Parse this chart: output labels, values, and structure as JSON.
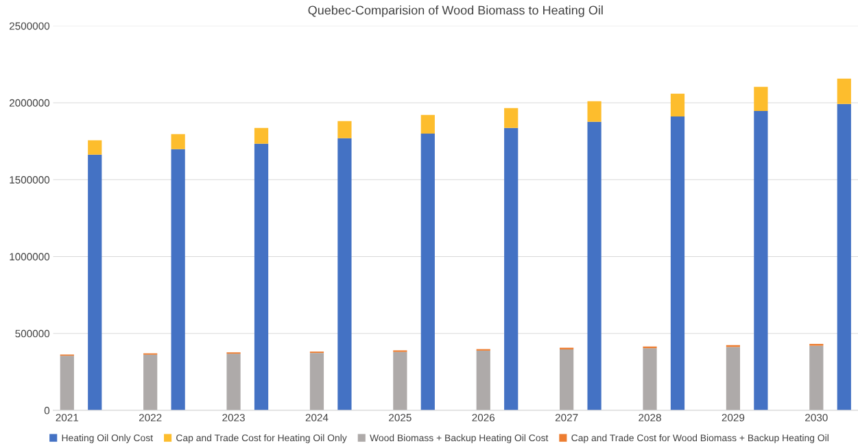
{
  "chart_data": {
    "type": "bar",
    "stacked": true,
    "title": "Quebec-Comparision of Wood Biomass to Heating Oil",
    "categories": [
      "2021",
      null,
      null,
      "2022",
      null,
      null,
      "2023",
      null,
      null,
      "2024",
      null,
      null,
      "2025",
      null,
      null,
      "2026",
      null,
      null,
      "2027",
      null,
      null,
      "2028",
      null,
      null,
      "2029",
      null,
      null,
      "2030",
      null
    ],
    "series": [
      {
        "name": "Heating Oil Only Cost",
        "color": "#4472c4",
        "values": [
          null,
          1662000,
          null,
          null,
          1698000,
          null,
          null,
          1734000,
          null,
          null,
          1769000,
          null,
          null,
          1800000,
          null,
          null,
          1836000,
          null,
          null,
          1876000,
          null,
          null,
          1911000,
          null,
          null,
          1947000,
          null,
          null,
          1992000
        ]
      },
      {
        "name": "Cap and Trade Cost for Heating Oil Only",
        "color": "#fdbd2d",
        "values": [
          null,
          94000,
          null,
          null,
          98000,
          null,
          null,
          102000,
          null,
          null,
          112000,
          null,
          null,
          121000,
          null,
          null,
          129000,
          null,
          null,
          134000,
          null,
          null,
          148000,
          null,
          null,
          156000,
          null,
          null,
          165000
        ]
      },
      {
        "name": "Wood Biomass + Backup Heating Oil Cost",
        "color": "#aeaaa9",
        "values": [
          355000,
          null,
          null,
          362000,
          null,
          null,
          368000,
          null,
          null,
          373000,
          null,
          null,
          380000,
          null,
          null,
          388000,
          null,
          null,
          396000,
          null,
          null,
          404000,
          null,
          null,
          412000,
          null,
          null,
          420000,
          null
        ]
      },
      {
        "name": "Cap and Trade Cost for Wood Biomass + Backup Heating Oil",
        "color": "#ed7d31",
        "values": [
          8000,
          null,
          null,
          8000,
          null,
          null,
          9000,
          null,
          null,
          9000,
          null,
          null,
          10000,
          null,
          null,
          10000,
          null,
          null,
          11000,
          null,
          null,
          11000,
          null,
          null,
          12000,
          null,
          null,
          12000,
          null
        ]
      }
    ],
    "ylim": [
      0,
      2500000
    ],
    "yticks": [
      0,
      500000,
      1000000,
      1500000,
      2000000,
      2500000
    ],
    "grid": "y",
    "legend": "bottom"
  }
}
